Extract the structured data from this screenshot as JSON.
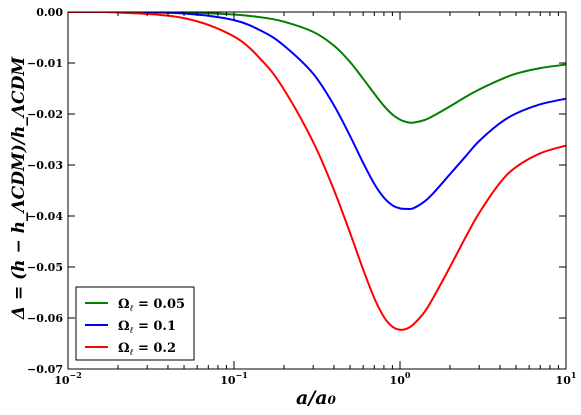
{
  "chart_data": {
    "type": "line",
    "title": "",
    "xlabel": "a/a₀",
    "ylabel": "Δ = (h − h_ΛCDM)/h_ΛCDM",
    "xscale": "log",
    "xlim": [
      0.01,
      10
    ],
    "ylim": [
      -0.07,
      0.0
    ],
    "grid": false,
    "legend_position": "lower-left",
    "x_ticks": [
      {
        "base": "10",
        "exp": "−2"
      },
      {
        "base": "10",
        "exp": "−1"
      },
      {
        "base": "10",
        "exp": "0"
      },
      {
        "base": "10",
        "exp": "1"
      }
    ],
    "y_ticks": [
      "0.00",
      "−0.01",
      "−0.02",
      "−0.03",
      "−0.04",
      "−0.05",
      "−0.06",
      "−0.07"
    ],
    "y_tick_values": [
      0.0,
      -0.01,
      -0.02,
      -0.03,
      -0.04,
      -0.05,
      -0.06,
      -0.07
    ],
    "x_tick_values": [
      0.01,
      0.1,
      1,
      10
    ],
    "x": [
      0.01,
      0.02,
      0.05,
      0.1,
      0.15,
      0.2,
      0.3,
      0.4,
      0.5,
      0.6,
      0.7,
      0.8,
      0.9,
      1.0,
      1.1,
      1.2,
      1.4,
      1.6,
      2.0,
      2.5,
      3.0,
      4.0,
      5.0,
      7.0,
      10.0
    ],
    "series": [
      {
        "name": "Ω_ℓ = 0.05",
        "label_base": "Ω",
        "label_sub": "ℓ",
        "label_rest": " = 0.05",
        "color": "#008000",
        "values": [
          0.0,
          0.0,
          -0.0001,
          -0.0005,
          -0.0011,
          -0.0019,
          -0.0039,
          -0.0066,
          -0.0098,
          -0.0131,
          -0.016,
          -0.0184,
          -0.0201,
          -0.0211,
          -0.0216,
          -0.0217,
          -0.0212,
          -0.0203,
          -0.0185,
          -0.0166,
          -0.0152,
          -0.0133,
          -0.0121,
          -0.011,
          -0.0103
        ]
      },
      {
        "name": "Ω_ℓ = 0.1",
        "label_base": "Ω",
        "label_sub": "ℓ",
        "label_rest": " = 0.1",
        "color": "#0000ff",
        "values": [
          0.0,
          0.0,
          -0.0003,
          -0.0016,
          -0.0039,
          -0.0066,
          -0.0121,
          -0.0183,
          -0.0243,
          -0.0296,
          -0.0337,
          -0.0364,
          -0.0379,
          -0.0385,
          -0.0386,
          -0.0385,
          -0.0372,
          -0.0354,
          -0.0318,
          -0.0282,
          -0.0253,
          -0.0218,
          -0.0199,
          -0.0181,
          -0.017
        ]
      },
      {
        "name": "Ω_ℓ = 0.2",
        "label_base": "Ω",
        "label_sub": "ℓ",
        "label_rest": " = 0.2",
        "color": "#ff0000",
        "values": [
          0.0,
          -0.0001,
          -0.0012,
          -0.0048,
          -0.0098,
          -0.0152,
          -0.0255,
          -0.0349,
          -0.0433,
          -0.0505,
          -0.0561,
          -0.0598,
          -0.0617,
          -0.0623,
          -0.0621,
          -0.0613,
          -0.0589,
          -0.0558,
          -0.05,
          -0.044,
          -0.0394,
          -0.0335,
          -0.0304,
          -0.0277,
          -0.0262
        ]
      }
    ]
  }
}
